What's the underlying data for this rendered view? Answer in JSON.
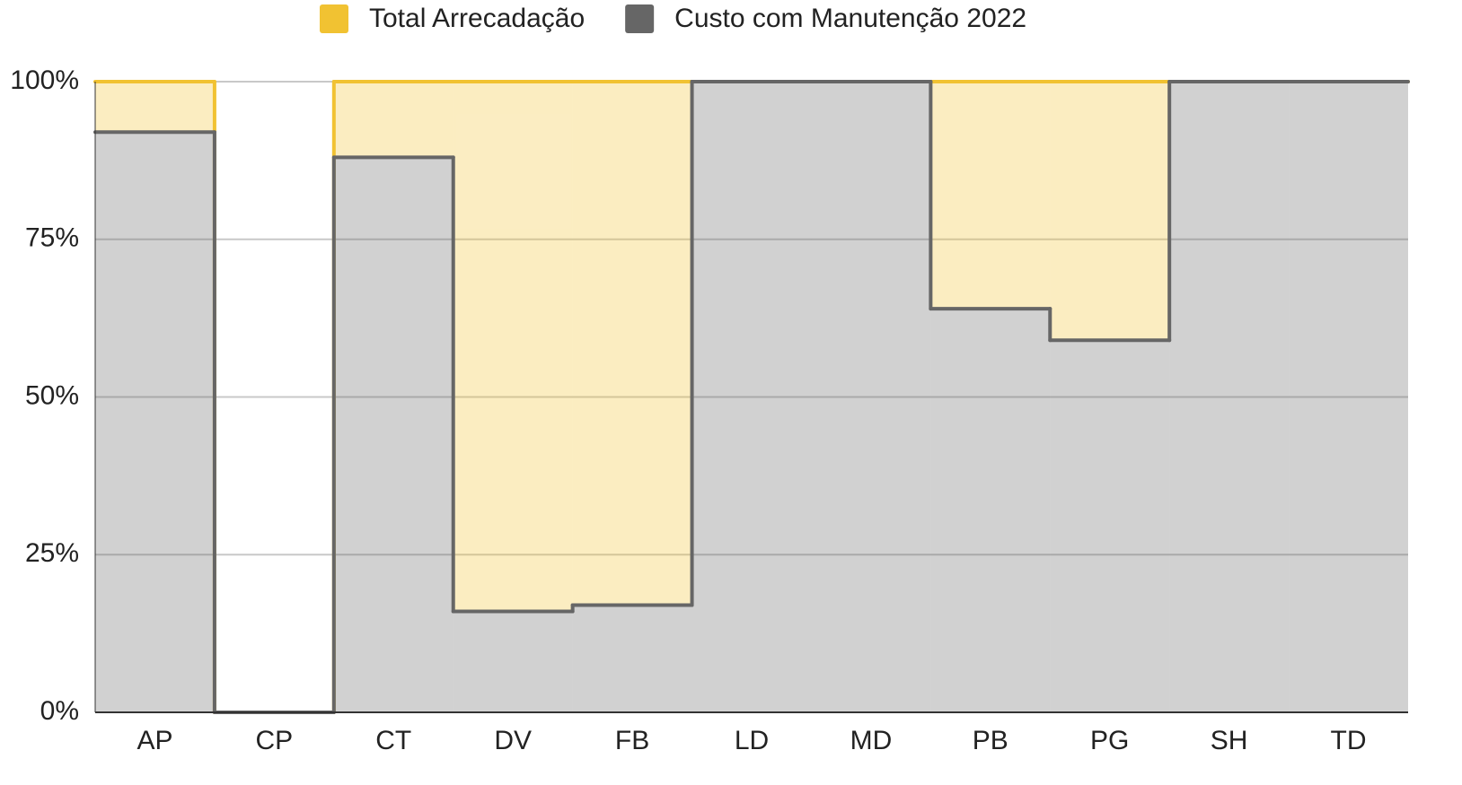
{
  "chart_data": {
    "type": "stepped_area_stacked_percent",
    "categories": [
      "AP",
      "CP",
      "CT",
      "DV",
      "FB",
      "LD",
      "MD",
      "PB",
      "PG",
      "SH",
      "TD"
    ],
    "series": [
      {
        "name": "Custo com Manutenção 2022",
        "color": "#666666",
        "values": [
          92,
          0,
          88,
          16,
          17,
          100,
          100,
          64,
          59,
          100,
          100
        ]
      },
      {
        "name": "Total Arrecadação",
        "color": "#f1c232",
        "values": [
          8,
          0,
          12,
          84,
          83,
          0,
          0,
          36,
          41,
          0,
          0
        ]
      }
    ],
    "legend_order": [
      1,
      0
    ],
    "legend": "top",
    "ylim": [
      0,
      100
    ],
    "yticks": [
      {
        "value": 0,
        "label": "0%"
      },
      {
        "value": 25,
        "label": "25%"
      },
      {
        "value": 50,
        "label": "50%"
      },
      {
        "value": 75,
        "label": "75%"
      },
      {
        "value": 100,
        "label": "100%"
      }
    ],
    "grid": true
  }
}
